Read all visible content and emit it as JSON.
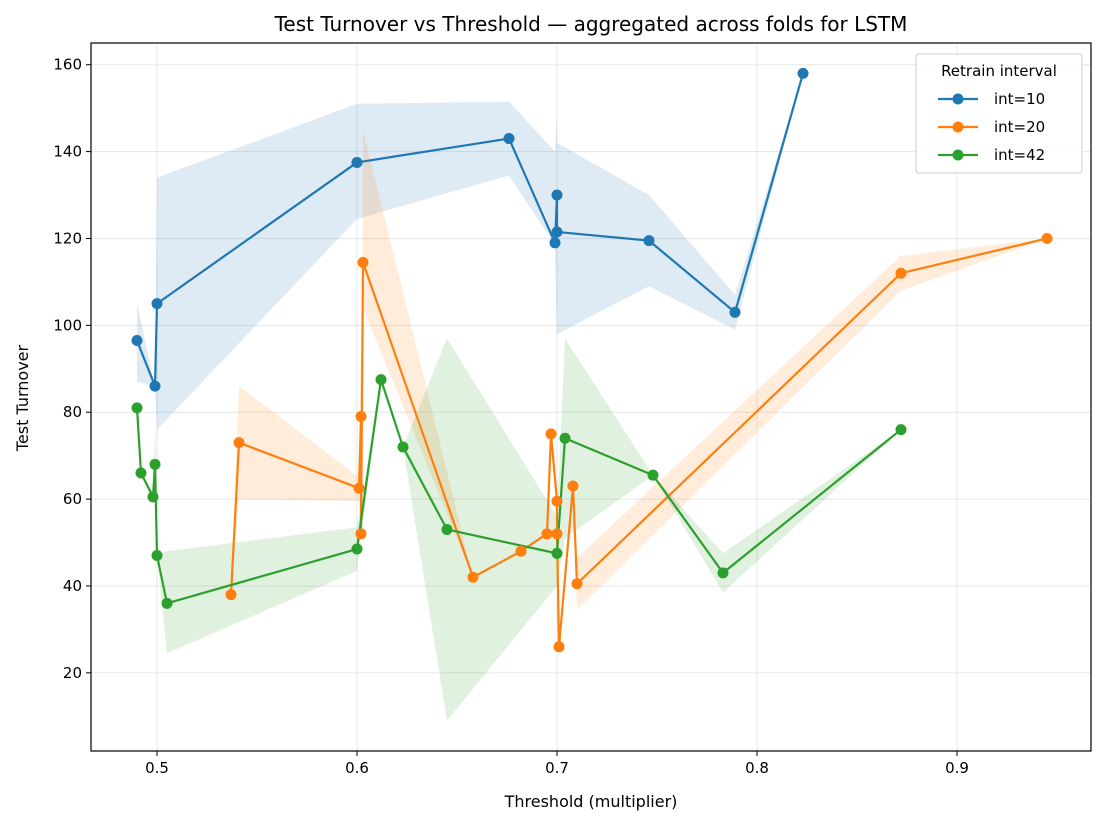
{
  "chart_data": {
    "type": "line",
    "title": "Test Turnover vs Threshold — aggregated across folds for LSTM",
    "xlabel": "Threshold (multiplier)",
    "ylabel": "Test Turnover",
    "xlim": [
      0.467,
      0.967
    ],
    "ylim": [
      2,
      165
    ],
    "xticks": [
      0.5,
      0.6,
      0.7,
      0.8,
      0.9
    ],
    "xtick_labels": [
      "0.5",
      "0.6",
      "0.7",
      "0.8",
      "0.9"
    ],
    "yticks": [
      20,
      40,
      60,
      80,
      100,
      120,
      140,
      160
    ],
    "ytick_labels": [
      "20",
      "40",
      "60",
      "80",
      "100",
      "120",
      "140",
      "160"
    ],
    "grid": true,
    "legend": {
      "title": "Retrain interval",
      "placement": "top-right"
    },
    "series": [
      {
        "name": "int=10",
        "color": "#1f77b4",
        "band_color": "#1f77b4",
        "x": [
          0.49,
          0.499,
          0.5,
          0.6,
          0.676,
          0.699,
          0.7,
          0.7,
          0.746,
          0.789,
          0.823
        ],
        "y": [
          96.5,
          86,
          105,
          137.5,
          143,
          119,
          130,
          121.5,
          119.5,
          103,
          158
        ],
        "lower": [
          87,
          86,
          76,
          124.5,
          134.5,
          118.5,
          95,
          98,
          109,
          99,
          158
        ],
        "upper": [
          105,
          86,
          134,
          151,
          151.5,
          140,
          148,
          142,
          130,
          107,
          158
        ]
      },
      {
        "name": "int=20",
        "color": "#ff7f0e",
        "band_color": "#ff7f0e",
        "x": [
          0.537,
          0.541,
          0.601,
          0.602,
          0.602,
          0.603,
          0.658,
          0.682,
          0.695,
          0.697,
          0.7,
          0.7,
          0.701,
          0.708,
          0.71,
          0.872,
          0.945
        ],
        "y": [
          38,
          73,
          62.5,
          79,
          52,
          114.5,
          42,
          48,
          52,
          75,
          59.5,
          52,
          26,
          63,
          40.5,
          112,
          120
        ],
        "lower": [
          38,
          60,
          59.5,
          60,
          52,
          104,
          42,
          48,
          52,
          72,
          59.5,
          52,
          26,
          63,
          34.5,
          108,
          120
        ],
        "upper": [
          38,
          86,
          65,
          98,
          52,
          145,
          42,
          48,
          52,
          78,
          59.5,
          52,
          26,
          63,
          46.5,
          116,
          120
        ]
      },
      {
        "name": "int=42",
        "color": "#2ca02c",
        "band_color": "#2ca02c",
        "x": [
          0.49,
          0.492,
          0.498,
          0.499,
          0.5,
          0.505,
          0.6,
          0.612,
          0.623,
          0.645,
          0.7,
          0.704,
          0.748,
          0.783,
          0.872
        ],
        "y": [
          81,
          66,
          60.5,
          68,
          47,
          36,
          48.5,
          87.5,
          72,
          53,
          47.5,
          74,
          65.5,
          43,
          76
        ],
        "lower": [
          81,
          66,
          60.5,
          60,
          47,
          24.5,
          43.5,
          87.5,
          72,
          9,
          40,
          51,
          65.5,
          38.5,
          76
        ],
        "upper": [
          81,
          66,
          60.5,
          78,
          47,
          48,
          53.5,
          87.5,
          72,
          97,
          56,
          97,
          65.5,
          47.5,
          76
        ]
      }
    ]
  }
}
